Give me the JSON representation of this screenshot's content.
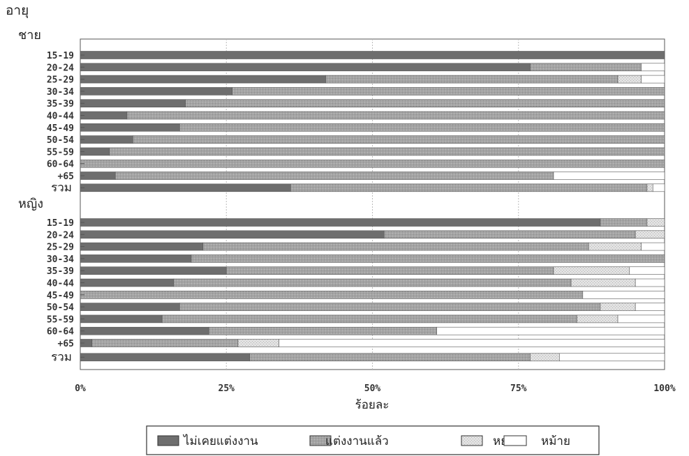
{
  "chart_data": {
    "type": "bar",
    "orientation": "horizontal",
    "stacked": "percent",
    "y_axis_title": "อายุ",
    "xlabel": "ร้อยละ",
    "x_ticks": [
      "0%",
      "25%",
      "50%",
      "75%",
      "100%"
    ],
    "xlim": [
      0,
      100
    ],
    "grid": true,
    "legend_position": "bottom",
    "series": [
      {
        "name": "ไม่เคยแต่งงาน",
        "color": "#6e6e6e"
      },
      {
        "name": "แต่งงานแล้ว",
        "color": "#a4a4a4"
      },
      {
        "name": "หย่า",
        "color": "#d9d9d9"
      },
      {
        "name": "หม้าย",
        "color": "#ffffff"
      }
    ],
    "groups": [
      {
        "name": "ชาย",
        "rows": [
          {
            "label": "15-19",
            "values": [
              100,
              0,
              0,
              0
            ]
          },
          {
            "label": "20-24",
            "values": [
              77,
              19,
              0,
              4
            ]
          },
          {
            "label": "25-29",
            "values": [
              42,
              50,
              4,
              4
            ]
          },
          {
            "label": "30-34",
            "values": [
              26,
              74,
              0,
              0
            ]
          },
          {
            "label": "35-39",
            "values": [
              18,
              82,
              0,
              0
            ]
          },
          {
            "label": "40-44",
            "values": [
              8,
              92,
              0,
              0
            ]
          },
          {
            "label": "45-49",
            "values": [
              17,
              83,
              0,
              0
            ]
          },
          {
            "label": "50-54",
            "values": [
              9,
              91,
              0,
              0
            ]
          },
          {
            "label": "55-59",
            "values": [
              5,
              95,
              0,
              0
            ]
          },
          {
            "label": "60-64",
            "values": [
              0,
              100,
              0,
              0
            ]
          },
          {
            "label": "+65",
            "values": [
              6,
              75,
              0,
              19
            ]
          },
          {
            "label": "รวม",
            "values": [
              36,
              61,
              1,
              2
            ]
          }
        ]
      },
      {
        "name": "หญิง",
        "rows": [
          {
            "label": "15-19",
            "values": [
              89,
              8,
              3,
              0
            ]
          },
          {
            "label": "20-24",
            "values": [
              52,
              43,
              5,
              0
            ]
          },
          {
            "label": "25-29",
            "values": [
              21,
              66,
              9,
              4
            ]
          },
          {
            "label": "30-34",
            "values": [
              19,
              81,
              0,
              0
            ]
          },
          {
            "label": "35-39",
            "values": [
              25,
              56,
              13,
              6
            ]
          },
          {
            "label": "40-44",
            "values": [
              16,
              68,
              11,
              5
            ]
          },
          {
            "label": "45-49",
            "values": [
              0,
              86,
              0,
              14
            ]
          },
          {
            "label": "50-54",
            "values": [
              17,
              72,
              6,
              5
            ]
          },
          {
            "label": "55-59",
            "values": [
              14,
              71,
              7,
              8
            ]
          },
          {
            "label": "60-64",
            "values": [
              22,
              39,
              0,
              39
            ]
          },
          {
            "label": "+65",
            "values": [
              2,
              25,
              7,
              66
            ]
          },
          {
            "label": "รวม",
            "values": [
              29,
              48,
              5,
              18
            ]
          }
        ]
      }
    ]
  }
}
